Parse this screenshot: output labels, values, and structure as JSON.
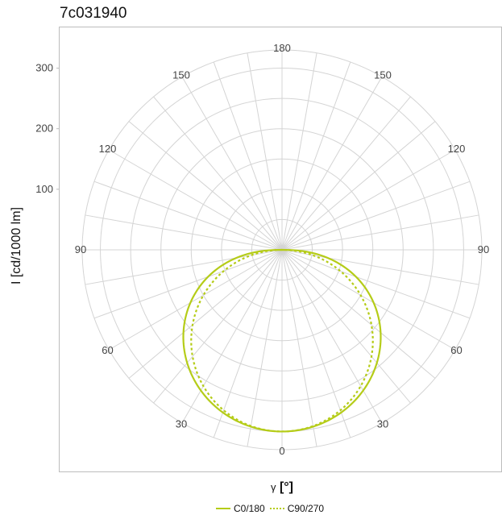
{
  "chart_data": {
    "type": "polar",
    "title": "7c031940",
    "xlabel": "γ [°]",
    "xlabel_symbol": "γ",
    "xlabel_unit": "[°]",
    "ylabel": "I [cd/1000 lm]",
    "radial_ticks": [
      100,
      200,
      300
    ],
    "rmax": 330,
    "angle_labels": [
      0,
      30,
      60,
      90,
      120,
      150,
      180,
      150,
      120,
      90,
      60,
      30
    ],
    "colors": {
      "series": "#b5cc18",
      "grid": "#d4d4d4",
      "frame": "#bdbdbd"
    },
    "series": [
      {
        "name": "C0/180",
        "style": "solid",
        "peak": 300,
        "gamma_max": 90
      },
      {
        "name": "C90/270",
        "style": "dotted",
        "peak": 300,
        "gamma_max": 90
      }
    ]
  }
}
